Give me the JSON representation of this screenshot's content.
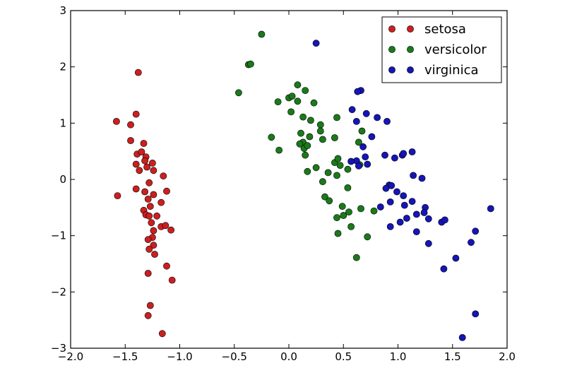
{
  "chart_data": {
    "type": "scatter",
    "title": "",
    "xlabel": "",
    "ylabel": "",
    "xlim": [
      -2.0,
      2.0
    ],
    "ylim": [
      -3,
      3
    ],
    "x_ticks": [
      -2.0,
      -1.5,
      -1.0,
      -0.5,
      0.0,
      0.5,
      1.0,
      1.5,
      2.0
    ],
    "y_ticks": [
      -3,
      -2,
      -1,
      0,
      1,
      2,
      3
    ],
    "x_tick_labels": [
      "−2.0",
      "−1.5",
      "−1.0",
      "−0.5",
      "0.0",
      "0.5",
      "1.0",
      "1.5",
      "2.0"
    ],
    "y_tick_labels": [
      "−3",
      "−2",
      "−1",
      "0",
      "1",
      "2",
      "3"
    ],
    "grid": false,
    "legend": "top-right",
    "series": [
      {
        "name": "setosa",
        "color": "#cc1f1f",
        "points": [
          [
            -1.38,
            1.9
          ],
          [
            -1.4,
            1.16
          ],
          [
            -1.58,
            1.03
          ],
          [
            -1.45,
            0.97
          ],
          [
            -1.45,
            0.69
          ],
          [
            -1.33,
            0.64
          ],
          [
            -1.39,
            0.45
          ],
          [
            -1.35,
            0.49
          ],
          [
            -1.31,
            0.4
          ],
          [
            -1.32,
            0.33
          ],
          [
            -1.25,
            0.29
          ],
          [
            -1.4,
            0.27
          ],
          [
            -1.3,
            0.22
          ],
          [
            -1.37,
            0.16
          ],
          [
            -1.24,
            0.16
          ],
          [
            -1.15,
            0.06
          ],
          [
            -1.28,
            -0.06
          ],
          [
            -1.4,
            -0.17
          ],
          [
            -1.32,
            -0.22
          ],
          [
            -1.12,
            -0.21
          ],
          [
            -1.24,
            -0.27
          ],
          [
            -1.57,
            -0.29
          ],
          [
            -1.29,
            -0.35
          ],
          [
            -1.17,
            -0.41
          ],
          [
            -1.27,
            -0.48
          ],
          [
            -1.33,
            -0.55
          ],
          [
            -1.31,
            -0.63
          ],
          [
            -1.28,
            -0.65
          ],
          [
            -1.21,
            -0.65
          ],
          [
            -1.26,
            -0.77
          ],
          [
            -1.17,
            -0.84
          ],
          [
            -1.13,
            -0.82
          ],
          [
            -1.08,
            -0.9
          ],
          [
            -1.24,
            -0.91
          ],
          [
            -1.25,
            -1.03
          ],
          [
            -1.29,
            -1.07
          ],
          [
            -1.24,
            -1.17
          ],
          [
            -1.28,
            -1.24
          ],
          [
            -1.23,
            -1.33
          ],
          [
            -1.12,
            -1.54
          ],
          [
            -1.29,
            -1.67
          ],
          [
            -1.07,
            -1.79
          ],
          [
            -1.27,
            -2.24
          ],
          [
            -1.29,
            -2.42
          ],
          [
            -1.16,
            -2.74
          ]
        ]
      },
      {
        "name": "versicolor",
        "color": "#1a7a1a",
        "points": [
          [
            -0.25,
            2.58
          ],
          [
            -0.37,
            2.04
          ],
          [
            -0.35,
            2.05
          ],
          [
            -0.46,
            1.54
          ],
          [
            0.08,
            1.68
          ],
          [
            0.15,
            1.58
          ],
          [
            0.0,
            1.45
          ],
          [
            0.03,
            1.48
          ],
          [
            -0.1,
            1.38
          ],
          [
            0.08,
            1.39
          ],
          [
            0.23,
            1.36
          ],
          [
            0.02,
            1.2
          ],
          [
            0.13,
            1.11
          ],
          [
            0.2,
            1.05
          ],
          [
            0.29,
            0.97
          ],
          [
            0.44,
            1.1
          ],
          [
            0.11,
            0.82
          ],
          [
            0.19,
            0.76
          ],
          [
            0.29,
            0.86
          ],
          [
            0.31,
            0.71
          ],
          [
            0.42,
            0.74
          ],
          [
            -0.16,
            0.75
          ],
          [
            0.13,
            0.66
          ],
          [
            0.1,
            0.63
          ],
          [
            0.14,
            0.55
          ],
          [
            0.17,
            0.6
          ],
          [
            -0.09,
            0.52
          ],
          [
            0.15,
            0.43
          ],
          [
            0.42,
            0.3
          ],
          [
            0.45,
            0.37
          ],
          [
            0.47,
            0.25
          ],
          [
            0.54,
            0.18
          ],
          [
            0.36,
            0.12
          ],
          [
            0.17,
            0.14
          ],
          [
            0.25,
            0.21
          ],
          [
            0.44,
            0.07
          ],
          [
            0.31,
            -0.04
          ],
          [
            0.54,
            -0.15
          ],
          [
            0.33,
            -0.31
          ],
          [
            0.37,
            -0.38
          ],
          [
            0.49,
            -0.48
          ],
          [
            0.5,
            -0.64
          ],
          [
            0.44,
            -0.68
          ],
          [
            0.45,
            -0.96
          ],
          [
            0.57,
            -0.84
          ],
          [
            0.66,
            -0.52
          ],
          [
            0.72,
            -1.02
          ],
          [
            0.78,
            -0.56
          ],
          [
            0.62,
            -1.39
          ],
          [
            0.64,
            0.66
          ],
          [
            0.67,
            0.86
          ],
          [
            0.65,
            0.26
          ],
          [
            0.55,
            -0.58
          ]
        ]
      },
      {
        "name": "virginica",
        "color": "#1515b8",
        "points": [
          [
            0.25,
            2.42
          ],
          [
            0.66,
            1.58
          ],
          [
            0.63,
            1.56
          ],
          [
            0.58,
            1.24
          ],
          [
            0.71,
            1.17
          ],
          [
            0.81,
            1.1
          ],
          [
            0.9,
            1.03
          ],
          [
            0.62,
            1.03
          ],
          [
            0.76,
            0.76
          ],
          [
            0.68,
            0.58
          ],
          [
            0.7,
            0.4
          ],
          [
            0.62,
            0.33
          ],
          [
            0.57,
            0.32
          ],
          [
            0.64,
            0.24
          ],
          [
            0.72,
            0.27
          ],
          [
            0.88,
            0.43
          ],
          [
            0.97,
            0.38
          ],
          [
            1.04,
            0.43
          ],
          [
            1.05,
            0.46
          ],
          [
            1.13,
            0.49
          ],
          [
            1.14,
            0.07
          ],
          [
            1.22,
            0.02
          ],
          [
            0.92,
            -0.1
          ],
          [
            0.94,
            -0.11
          ],
          [
            0.89,
            -0.16
          ],
          [
            0.99,
            -0.22
          ],
          [
            1.05,
            -0.29
          ],
          [
            0.93,
            -0.4
          ],
          [
            1.13,
            -0.39
          ],
          [
            1.06,
            -0.46
          ],
          [
            0.84,
            -0.49
          ],
          [
            1.25,
            -0.5
          ],
          [
            1.17,
            -0.62
          ],
          [
            1.24,
            -0.59
          ],
          [
            1.08,
            -0.69
          ],
          [
            1.02,
            -0.76
          ],
          [
            1.28,
            -0.7
          ],
          [
            0.93,
            -0.84
          ],
          [
            1.17,
            -0.93
          ],
          [
            1.4,
            -0.76
          ],
          [
            1.43,
            -0.72
          ],
          [
            1.28,
            -1.14
          ],
          [
            1.85,
            -0.52
          ],
          [
            1.71,
            -0.92
          ],
          [
            1.67,
            -1.12
          ],
          [
            1.53,
            -1.4
          ],
          [
            1.42,
            -1.59
          ],
          [
            1.71,
            -2.39
          ],
          [
            1.59,
            -2.81
          ]
        ]
      }
    ]
  }
}
